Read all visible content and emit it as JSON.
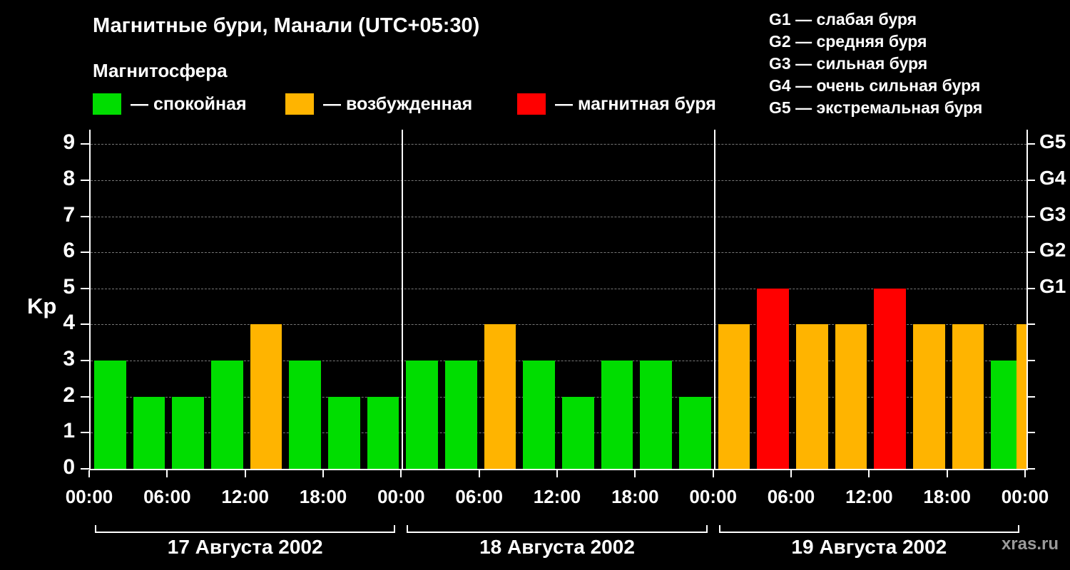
{
  "title": "Магнитные бури, Манали (UTC+05:30)",
  "subtitle": "Магнитосфера",
  "ylabel": "Kp",
  "watermark": "xras.ru",
  "legend": [
    {
      "label": "— спокойная",
      "color": "#00dd00"
    },
    {
      "label": "— возбужденная",
      "color": "#ffb400"
    },
    {
      "label": "— магнитная буря",
      "color": "#ff0000"
    }
  ],
  "g_legend": [
    "G1 — слабая буря",
    "G2 — средняя буря",
    "G3 — сильная буря",
    "G4 — очень сильная буря",
    "G5 — экстремальная буря"
  ],
  "chart_data": {
    "type": "bar",
    "title": "Магнитные бури, Манали (UTC+05:30)",
    "ylabel": "Kp",
    "ylim": [
      0,
      9.4
    ],
    "yticks": [
      0,
      1,
      2,
      3,
      4,
      5,
      6,
      7,
      8,
      9
    ],
    "grid": true,
    "right_ticks": [
      {
        "value": 5,
        "label": "G1"
      },
      {
        "value": 6,
        "label": "G2"
      },
      {
        "value": 7,
        "label": "G3"
      },
      {
        "value": 8,
        "label": "G4"
      },
      {
        "value": 9,
        "label": "G5"
      }
    ],
    "x_tick_labels": [
      "00:00",
      "06:00",
      "12:00",
      "18:00"
    ],
    "x_end_label": "00:00",
    "bar_interval_hours": 3,
    "color_rules": {
      "quiet_max": 3,
      "excited_max": 4
    },
    "colors": {
      "quiet": "#00dd00",
      "excited": "#ffb400",
      "storm": "#ff0000"
    },
    "days": [
      {
        "date": "17 Августа 2002",
        "values": [
          3,
          2,
          2,
          3,
          4,
          3,
          2,
          2
        ]
      },
      {
        "date": "18 Августа 2002",
        "values": [
          3,
          3,
          4,
          3,
          2,
          3,
          3,
          2
        ]
      },
      {
        "date": "19 Августа 2002",
        "values": [
          4,
          5,
          4,
          4,
          5,
          4,
          4,
          3
        ]
      }
    ],
    "partial_next_bar": 4
  }
}
